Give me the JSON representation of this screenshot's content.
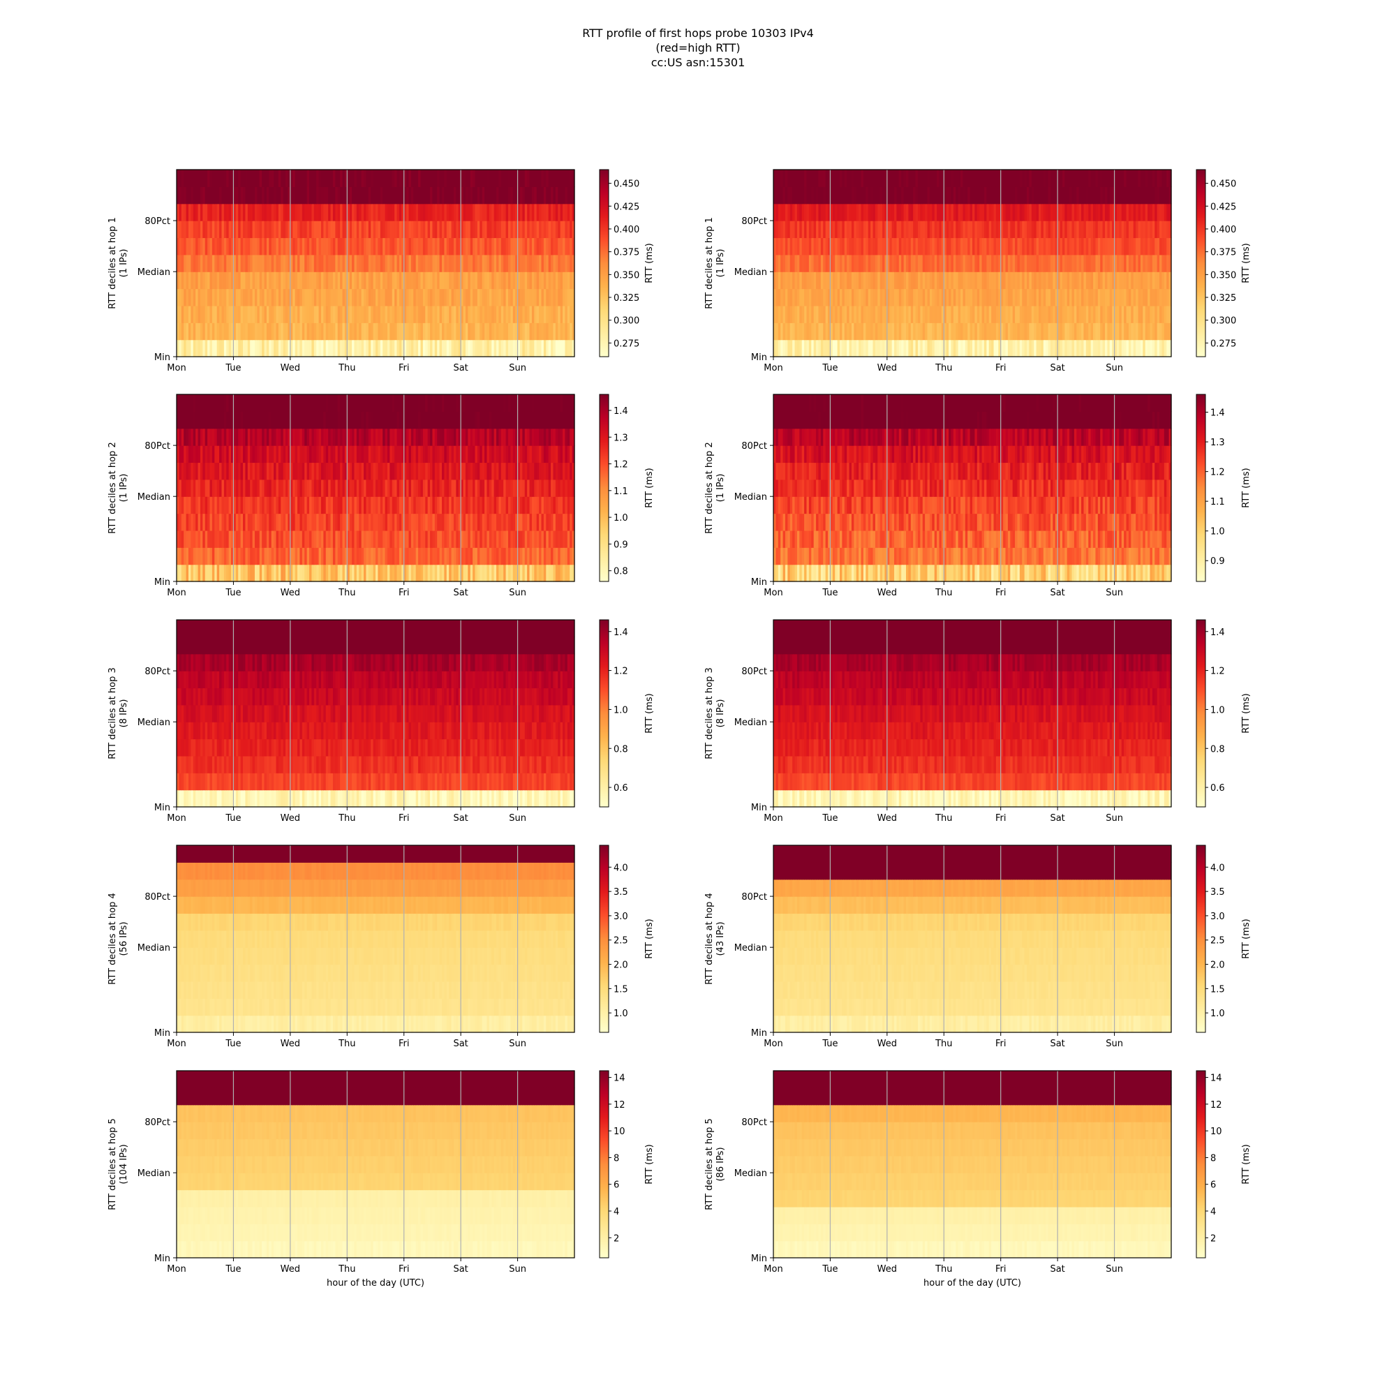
{
  "figure": {
    "title_lines": [
      "RTT profile of first hops probe 10303 IPv4",
      "(red=high RTT)",
      "cc:US asn:15301"
    ]
  },
  "y_tick_labels": [
    "Min",
    "Median",
    "80Pct"
  ],
  "x_tick_labels": [
    "Mon",
    "Tue",
    "Wed",
    "Thu",
    "Fri",
    "Sat",
    "Sun"
  ],
  "x_axis_label": "hour of the day (UTC)",
  "colorbar_label": "RTT (ms)",
  "colormap": [
    "#ffffcc",
    "#ffeda0",
    "#fed976",
    "#feb24c",
    "#fd8d3c",
    "#fc4e2a",
    "#e31a1c",
    "#bd0026",
    "#800026"
  ],
  "grid_color": "#b0b0b0",
  "chart_data": [
    {
      "type": "heatmap",
      "hop": 1,
      "ylabel": [
        "RTT deciles at hop 1",
        "(1 IPs)"
      ],
      "cbar_ticks": [
        "0.275",
        "0.300",
        "0.325",
        "0.350",
        "0.375",
        "0.400",
        "0.425",
        "0.450"
      ],
      "cbar_range": [
        0.26,
        0.465
      ],
      "band_levels": [
        0.28,
        0.335,
        0.34,
        0.345,
        0.35,
        0.37,
        0.385,
        0.395,
        0.41,
        0.47,
        0.47
      ],
      "noise": 0.012,
      "x_ticks": [
        "Mon",
        "Tue",
        "Wed",
        "Thu",
        "Fri",
        "Sat",
        "Sun"
      ],
      "xlabel": ""
    },
    {
      "type": "heatmap",
      "hop": 1,
      "ylabel": [
        "RTT deciles at hop 1",
        "(1 IPs)"
      ],
      "cbar_ticks": [
        "0.275",
        "0.300",
        "0.325",
        "0.350",
        "0.375",
        "0.400",
        "0.425",
        "0.450"
      ],
      "cbar_range": [
        0.26,
        0.465
      ],
      "band_levels": [
        0.28,
        0.335,
        0.34,
        0.345,
        0.35,
        0.375,
        0.39,
        0.4,
        0.415,
        0.47,
        0.47
      ],
      "noise": 0.01,
      "x_ticks": [
        "Mon",
        "Tue",
        "Wed",
        "Thu",
        "Fri",
        "Sat",
        "Sun"
      ],
      "xlabel": ""
    },
    {
      "type": "heatmap",
      "hop": 2,
      "ylabel": [
        "RTT deciles at hop 2",
        "(1 IPs)"
      ],
      "cbar_ticks": [
        "0.8",
        "0.9",
        "1.0",
        "1.1",
        "1.2",
        "1.3",
        "1.4"
      ],
      "cbar_range": [
        0.76,
        1.46
      ],
      "band_levels": [
        0.98,
        1.17,
        1.2,
        1.22,
        1.24,
        1.27,
        1.3,
        1.33,
        1.38,
        1.5,
        1.5
      ],
      "noise": 0.05,
      "x_ticks": [
        "Mon",
        "Tue",
        "Wed",
        "Thu",
        "Fri",
        "Sat",
        "Sun"
      ],
      "xlabel": ""
    },
    {
      "type": "heatmap",
      "hop": 2,
      "ylabel": [
        "RTT deciles at hop 2",
        "(1 IPs)"
      ],
      "cbar_ticks": [
        "0.9",
        "1.0",
        "1.1",
        "1.2",
        "1.3",
        "1.4"
      ],
      "cbar_range": [
        0.83,
        1.46
      ],
      "band_levels": [
        1.0,
        1.17,
        1.2,
        1.22,
        1.24,
        1.27,
        1.3,
        1.33,
        1.38,
        1.5,
        1.5
      ],
      "noise": 0.05,
      "x_ticks": [
        "Mon",
        "Tue",
        "Wed",
        "Thu",
        "Fri",
        "Sat",
        "Sun"
      ],
      "xlabel": ""
    },
    {
      "type": "heatmap",
      "hop": 3,
      "ylabel": [
        "RTT deciles at hop 3",
        "(8 IPs)"
      ],
      "cbar_ticks": [
        "0.6",
        "0.8",
        "1.0",
        "1.2",
        "1.4"
      ],
      "cbar_range": [
        0.5,
        1.46
      ],
      "band_levels": [
        0.55,
        1.12,
        1.17,
        1.2,
        1.23,
        1.26,
        1.3,
        1.33,
        1.38,
        1.5,
        1.5
      ],
      "noise": 0.04,
      "x_ticks": [
        "Mon",
        "Tue",
        "Wed",
        "Thu",
        "Fri",
        "Sat",
        "Sun"
      ],
      "xlabel": ""
    },
    {
      "type": "heatmap",
      "hop": 3,
      "ylabel": [
        "RTT deciles at hop 3",
        "(8 IPs)"
      ],
      "cbar_ticks": [
        "0.6",
        "0.8",
        "1.0",
        "1.2",
        "1.4"
      ],
      "cbar_range": [
        0.5,
        1.46
      ],
      "band_levels": [
        0.55,
        1.12,
        1.17,
        1.2,
        1.23,
        1.26,
        1.3,
        1.33,
        1.38,
        1.5,
        1.5
      ],
      "noise": 0.04,
      "x_ticks": [
        "Mon",
        "Tue",
        "Wed",
        "Thu",
        "Fri",
        "Sat",
        "Sun"
      ],
      "xlabel": ""
    },
    {
      "type": "heatmap",
      "hop": 4,
      "ylabel": [
        "RTT deciles at hop 4",
        "(56 IPs)"
      ],
      "cbar_ticks": [
        "1.0",
        "1.5",
        "2.0",
        "2.5",
        "3.0",
        "3.5",
        "4.0"
      ],
      "cbar_range": [
        0.6,
        4.45
      ],
      "band_levels": [
        1.05,
        1.3,
        1.35,
        1.4,
        1.45,
        1.5,
        1.6,
        2.0,
        2.3,
        2.5,
        4.6
      ],
      "noise": 0.05,
      "x_ticks": [
        "Mon",
        "Tue",
        "Wed",
        "Thu",
        "Fri",
        "Sat",
        "Sun"
      ],
      "xlabel": ""
    },
    {
      "type": "heatmap",
      "hop": 4,
      "ylabel": [
        "RTT deciles at hop 4",
        "(43 IPs)"
      ],
      "cbar_ticks": [
        "1.0",
        "1.5",
        "2.0",
        "2.5",
        "3.0",
        "3.5",
        "4.0"
      ],
      "cbar_range": [
        0.6,
        4.45
      ],
      "band_levels": [
        1.05,
        1.3,
        1.35,
        1.4,
        1.45,
        1.5,
        1.6,
        1.9,
        2.2,
        4.6,
        4.6
      ],
      "noise": 0.05,
      "x_ticks": [
        "Mon",
        "Tue",
        "Wed",
        "Thu",
        "Fri",
        "Sat",
        "Sun"
      ],
      "xlabel": ""
    },
    {
      "type": "heatmap",
      "hop": 5,
      "ylabel": [
        "RTT deciles at hop 5",
        "(104 IPs)"
      ],
      "cbar_ticks": [
        "2",
        "4",
        "6",
        "8",
        "10",
        "12",
        "14"
      ],
      "cbar_range": [
        0.5,
        14.5
      ],
      "band_levels": [
        1.2,
        1.5,
        1.7,
        1.9,
        4.2,
        4.4,
        4.6,
        4.8,
        5.0,
        15.0,
        15.0
      ],
      "noise": 0.12,
      "x_ticks": [
        "Mon",
        "Tue",
        "Wed",
        "Thu",
        "Fri",
        "Sat",
        "Sun"
      ],
      "xlabel": "hour of the day (UTC)"
    },
    {
      "type": "heatmap",
      "hop": 5,
      "ylabel": [
        "RTT deciles at hop 5",
        "(86 IPs)"
      ],
      "cbar_ticks": [
        "2",
        "4",
        "6",
        "8",
        "10",
        "12",
        "14"
      ],
      "cbar_range": [
        0.5,
        14.5
      ],
      "band_levels": [
        1.2,
        1.6,
        1.9,
        4.2,
        4.4,
        4.6,
        4.8,
        5.0,
        5.6,
        15.0,
        15.0
      ],
      "noise": 0.12,
      "x_ticks": [
        "Mon",
        "Tue",
        "Wed",
        "Thu",
        "Fri",
        "Sat",
        "Sun"
      ],
      "xlabel": "hour of the day (UTC)"
    }
  ]
}
